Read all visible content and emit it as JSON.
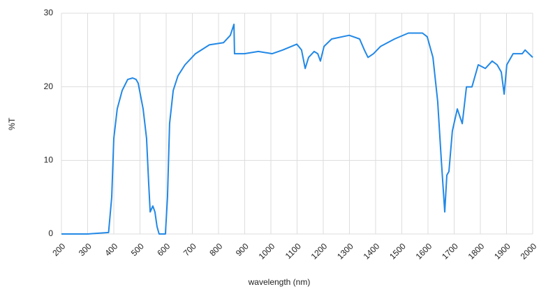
{
  "chart_data": {
    "type": "line",
    "xlabel": "wavelength (nm)",
    "ylabel": "%T",
    "xlim": [
      200,
      2000
    ],
    "ylim": [
      0,
      30
    ],
    "xticks": [
      200,
      300,
      400,
      500,
      600,
      700,
      800,
      900,
      1000,
      1100,
      1200,
      1300,
      1400,
      1500,
      1600,
      1700,
      1800,
      1900,
      2000
    ],
    "yticks": [
      0,
      10,
      20,
      30
    ],
    "grid": true,
    "series": [
      {
        "name": "%T",
        "color": "#2288e6",
        "x": [
          200,
          300,
          380,
          392,
          400,
          413,
          432,
          453,
          472,
          485,
          493,
          512,
          525,
          533,
          539,
          549,
          557,
          565,
          573,
          597,
          605,
          613,
          627,
          645,
          672,
          712,
          765,
          819,
          845,
          859,
          861,
          899,
          952,
          1005,
          1045,
          1099,
          1117,
          1131,
          1144,
          1165,
          1179,
          1189,
          1203,
          1232,
          1299,
          1339,
          1357,
          1371,
          1392,
          1419,
          1472,
          1525,
          1579,
          1597,
          1619,
          1637,
          1651,
          1664,
          1672,
          1680,
          1693,
          1712,
          1731,
          1747,
          1768,
          1792,
          1819,
          1845,
          1864,
          1880,
          1891,
          1901,
          1925,
          1960,
          1971,
          2000
        ],
        "values": [
          0,
          0,
          0.2,
          5,
          13,
          17,
          19.5,
          21,
          21.2,
          21,
          20.5,
          17,
          13,
          7,
          3,
          3.8,
          3,
          1,
          0,
          0,
          5,
          15,
          19.5,
          21.5,
          23,
          24.5,
          25.7,
          26,
          27,
          28.5,
          24.5,
          24.5,
          24.8,
          24.5,
          25,
          25.8,
          25,
          22.5,
          24,
          24.8,
          24.5,
          23.5,
          25.5,
          26.5,
          27,
          26.5,
          25,
          24,
          24.5,
          25.5,
          26.5,
          27.3,
          27.3,
          26.8,
          24,
          18,
          10,
          3,
          8,
          8.5,
          14,
          17,
          15,
          20,
          20,
          23,
          22.5,
          23.5,
          23,
          22,
          19,
          23,
          24.5,
          24.5,
          25,
          24
        ]
      }
    ]
  }
}
